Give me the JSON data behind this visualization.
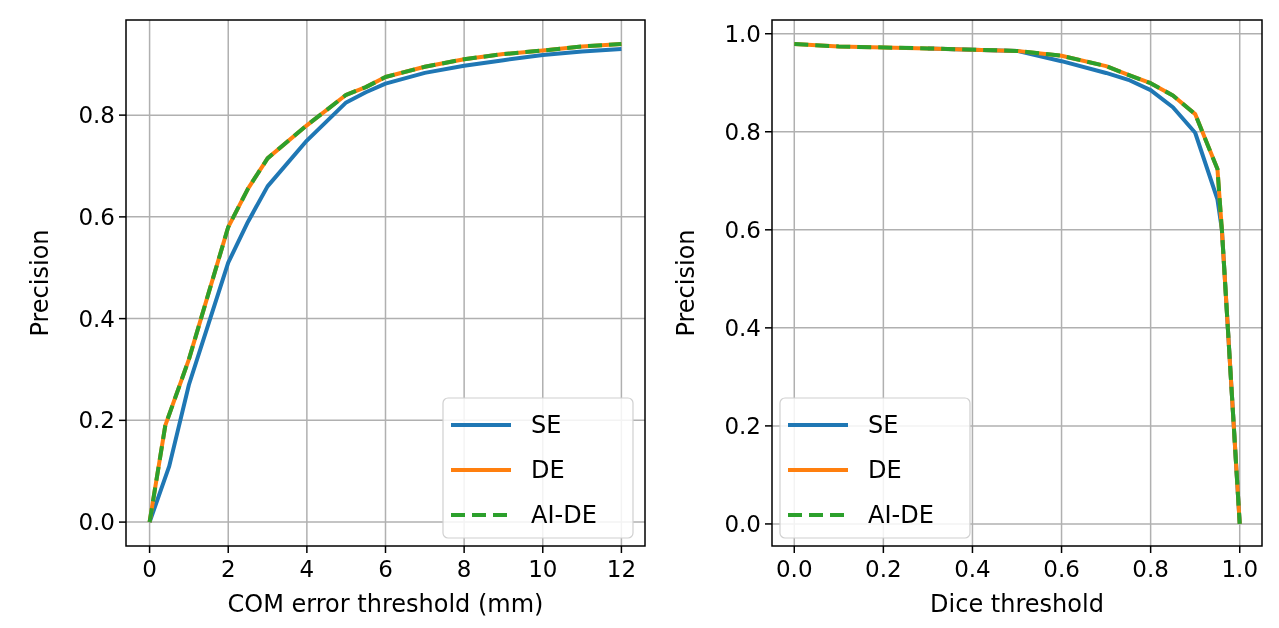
{
  "chart_data": [
    {
      "type": "line",
      "xlabel": "COM error threshold (mm)",
      "ylabel": "Precision",
      "xlim": [
        -0.6,
        12.6
      ],
      "ylim": [
        -0.047,
        0.987
      ],
      "xticks": [
        0,
        2,
        4,
        6,
        8,
        10,
        12
      ],
      "yticks": [
        {
          "value": 0,
          "label": "0.0"
        },
        {
          "value": 0.2,
          "label": "0.2"
        },
        {
          "value": 0.4,
          "label": "0.4"
        },
        {
          "value": 0.6,
          "label": "0.6"
        },
        {
          "value": 0.8,
          "label": "0.8"
        }
      ],
      "grid": true,
      "legend": "bottom right",
      "series": [
        {
          "name": "SE",
          "color": "#1f77b4",
          "line_style": "solid",
          "x": [
            0,
            0.5,
            1,
            1.5,
            2,
            2.5,
            3,
            4,
            5,
            5.5,
            6,
            7,
            8,
            9,
            10,
            11,
            12
          ],
          "values": [
            0,
            0.11,
            0.27,
            0.39,
            0.51,
            0.59,
            0.66,
            0.75,
            0.825,
            0.845,
            0.862,
            0.883,
            0.897,
            0.908,
            0.918,
            0.925,
            0.93
          ]
        },
        {
          "name": "DE",
          "color": "#ff7f0e",
          "line_style": "solid",
          "x": [
            0,
            0.4,
            1,
            1.5,
            2,
            2.5,
            3,
            4,
            5,
            5.5,
            6,
            7,
            8,
            9,
            10,
            11,
            12
          ],
          "values": [
            0,
            0.19,
            0.32,
            0.45,
            0.58,
            0.655,
            0.715,
            0.78,
            0.84,
            0.855,
            0.875,
            0.895,
            0.91,
            0.92,
            0.927,
            0.935,
            0.94
          ]
        },
        {
          "name": "AI-DE",
          "color": "#2ca02c",
          "line_style": "dashed",
          "x": [
            0,
            0.4,
            1,
            1.5,
            2,
            2.5,
            3,
            4,
            5,
            5.5,
            6,
            7,
            8,
            9,
            10,
            11,
            12
          ],
          "values": [
            0,
            0.19,
            0.32,
            0.45,
            0.58,
            0.655,
            0.715,
            0.78,
            0.84,
            0.855,
            0.875,
            0.895,
            0.91,
            0.92,
            0.927,
            0.935,
            0.94
          ]
        }
      ]
    },
    {
      "type": "line",
      "xlabel": "Dice threshold",
      "ylabel": "Precision",
      "xlim": [
        -0.05,
        1.05
      ],
      "ylim": [
        -0.045,
        1.028
      ],
      "xticks": [
        {
          "value": 0,
          "label": "0.0"
        },
        {
          "value": 0.2,
          "label": "0.2"
        },
        {
          "value": 0.4,
          "label": "0.4"
        },
        {
          "value": 0.6,
          "label": "0.6"
        },
        {
          "value": 0.8,
          "label": "0.8"
        },
        {
          "value": 1,
          "label": "1.0"
        }
      ],
      "yticks": [
        {
          "value": 0,
          "label": "0.0"
        },
        {
          "value": 0.2,
          "label": "0.2"
        },
        {
          "value": 0.4,
          "label": "0.4"
        },
        {
          "value": 0.6,
          "label": "0.6"
        },
        {
          "value": 0.8,
          "label": "0.8"
        },
        {
          "value": 1,
          "label": "1.0"
        }
      ],
      "grid": true,
      "legend": "bottom left",
      "series": [
        {
          "name": "SE",
          "color": "#1f77b4",
          "line_style": "solid",
          "x": [
            0.3,
            0.5,
            0.6,
            0.7,
            0.75,
            0.8,
            0.85,
            0.9,
            0.95,
            0.96,
            1
          ],
          "values": [
            0.97,
            0.965,
            0.944,
            0.92,
            0.906,
            0.885,
            0.85,
            0.798,
            0.662,
            0.6,
            0
          ]
        },
        {
          "name": "DE",
          "color": "#ff7f0e",
          "line_style": "solid",
          "x": [
            0,
            0.1,
            0.3,
            0.5,
            0.6,
            0.7,
            0.75,
            0.8,
            0.85,
            0.9,
            0.95,
            0.96,
            1
          ],
          "values": [
            0.979,
            0.974,
            0.97,
            0.965,
            0.955,
            0.934,
            0.916,
            0.899,
            0.874,
            0.836,
            0.724,
            0.599,
            0
          ]
        },
        {
          "name": "AI-DE",
          "color": "#2ca02c",
          "line_style": "dashed",
          "x": [
            0,
            0.1,
            0.3,
            0.5,
            0.6,
            0.7,
            0.75,
            0.8,
            0.85,
            0.9,
            0.95,
            0.96,
            1
          ],
          "values": [
            0.979,
            0.974,
            0.97,
            0.965,
            0.955,
            0.934,
            0.916,
            0.899,
            0.874,
            0.836,
            0.724,
            0.599,
            0
          ]
        }
      ]
    }
  ]
}
